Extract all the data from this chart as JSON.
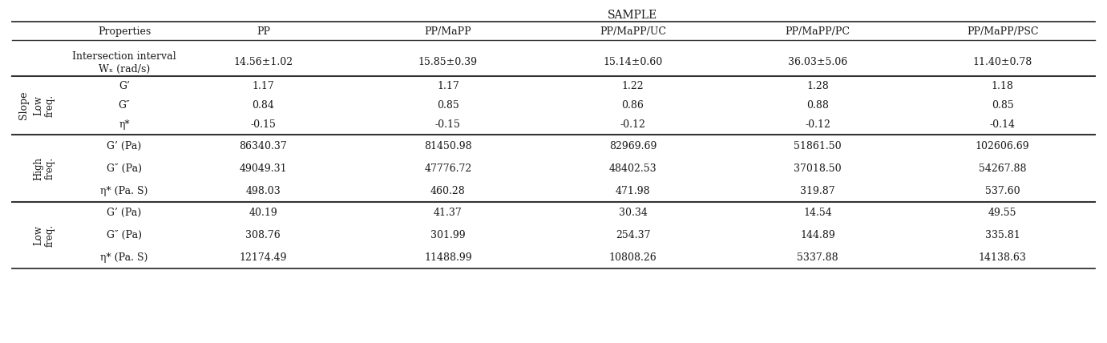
{
  "title": "SAMPLE",
  "col_headers": [
    "Properties",
    "PP",
    "PP/MaPP",
    "PP/MaPP/UC",
    "PP/MaPP/PC",
    "PP/MaPP/PSC"
  ],
  "intersection_label_1": "Intersection interval",
  "intersection_label_2": "Wₓ (rad/s)",
  "intersection_values": [
    "14.56±1.02",
    "15.85±0.39",
    "15.14±0.60",
    "36.03±5.06",
    "11.40±0.78"
  ],
  "slope_props": [
    "G’",
    "G″",
    "η*"
  ],
  "slope_values": [
    [
      "1.17",
      "1.17",
      "1.22",
      "1.28",
      "1.18"
    ],
    [
      "0.84",
      "0.85",
      "0.86",
      "0.88",
      "0.85"
    ],
    [
      "-0.15",
      "-0.15",
      "-0.12",
      "-0.12",
      "-0.14"
    ]
  ],
  "high_props": [
    "G’ (Pa)",
    "G″ (Pa)",
    "η* (Pa. S)"
  ],
  "high_values": [
    [
      "86340.37",
      "81450.98",
      "82969.69",
      "51861.50",
      "102606.69"
    ],
    [
      "49049.31",
      "47776.72",
      "48402.53",
      "37018.50",
      "54267.88"
    ],
    [
      "498.03",
      "460.28",
      "471.98",
      "319.87",
      "537.60"
    ]
  ],
  "low_props": [
    "G’ (Pa)",
    "G″ (Pa)",
    "η* (Pa. S)"
  ],
  "low_values": [
    [
      "40.19",
      "41.37",
      "30.34",
      "14.54",
      "49.55"
    ],
    [
      "308.76",
      "301.99",
      "254.37",
      "144.89",
      "335.81"
    ],
    [
      "12174.49",
      "11488.99",
      "10808.26",
      "5337.88",
      "14138.63"
    ]
  ],
  "bg_color": "#ffffff",
  "text_color": "#1a1a1a",
  "line_color": "#333333",
  "font_size": 9.0,
  "title_font_size": 10.0
}
